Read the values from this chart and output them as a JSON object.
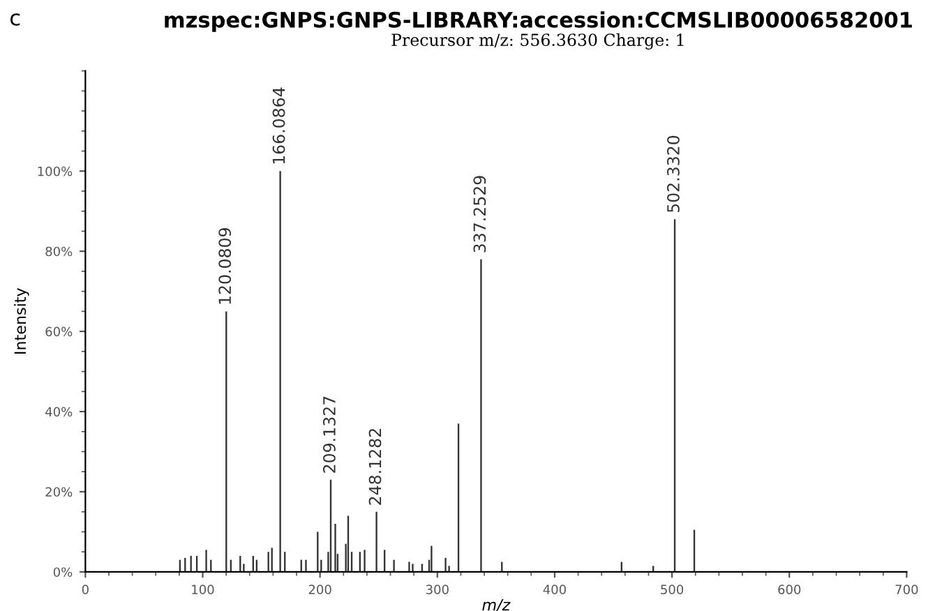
{
  "chart_data": {
    "type": "bar",
    "title": "mzspec:GNPS:GNPS-LIBRARY:accession:CCMSLIB00006582001",
    "subtitle": "Precursor m/z: 556.3630 Charge: 1",
    "xlabel": "m/z",
    "ylabel": "Intensity",
    "annotations": [
      "c",
      {
        "text": "120.0809",
        "x": 120.0809,
        "y": 65
      },
      {
        "text": "166.0864",
        "x": 166.0864,
        "y": 100
      },
      {
        "text": "209.1327",
        "x": 209.1327,
        "y": 23
      },
      {
        "text": "248.1282",
        "x": 248.1282,
        "y": 15
      },
      {
        "text": "337.2529",
        "x": 337.2529,
        "y": 78
      },
      {
        "text": "502.3320",
        "x": 502.332,
        "y": 88
      }
    ],
    "x": [
      80.6,
      85,
      90,
      95,
      103,
      107,
      120.0809,
      124,
      132,
      135,
      143,
      146,
      156,
      159,
      166.0864,
      170,
      184,
      188,
      198,
      201,
      207,
      209.1327,
      213,
      215,
      222,
      224,
      227,
      234,
      238,
      248.1282,
      255,
      263,
      276,
      279,
      287,
      293,
      295,
      307,
      310,
      318,
      337.2529,
      355,
      457,
      484,
      502.332,
      519
    ],
    "series": [
      {
        "color": "#333333",
        "values": [
          3,
          3.5,
          4,
          4,
          5.5,
          3,
          65,
          3,
          4,
          2,
          4,
          3,
          5,
          6,
          100,
          5,
          3,
          3,
          10,
          3,
          5,
          23,
          12,
          4.5,
          7,
          14,
          5,
          5,
          5.5,
          15,
          5.5,
          3,
          2.5,
          2,
          2,
          3,
          6.5,
          3.5,
          1.5,
          37,
          78,
          2.5,
          2.5,
          1.5,
          88,
          10.5
        ]
      }
    ],
    "xlim": [
      0,
      700
    ],
    "xticks": [
      0,
      100,
      200,
      300,
      400,
      500,
      600,
      700
    ],
    "ylim": [
      0,
      125
    ],
    "yticks": [
      {
        "value": 0,
        "label": "0%"
      },
      {
        "value": 20,
        "label": "20%"
      },
      {
        "value": 40,
        "label": "40%"
      },
      {
        "value": 60,
        "label": "60%"
      },
      {
        "value": 80,
        "label": "80%"
      },
      {
        "value": 100,
        "label": "100%"
      }
    ],
    "grid": false,
    "legend": false
  }
}
